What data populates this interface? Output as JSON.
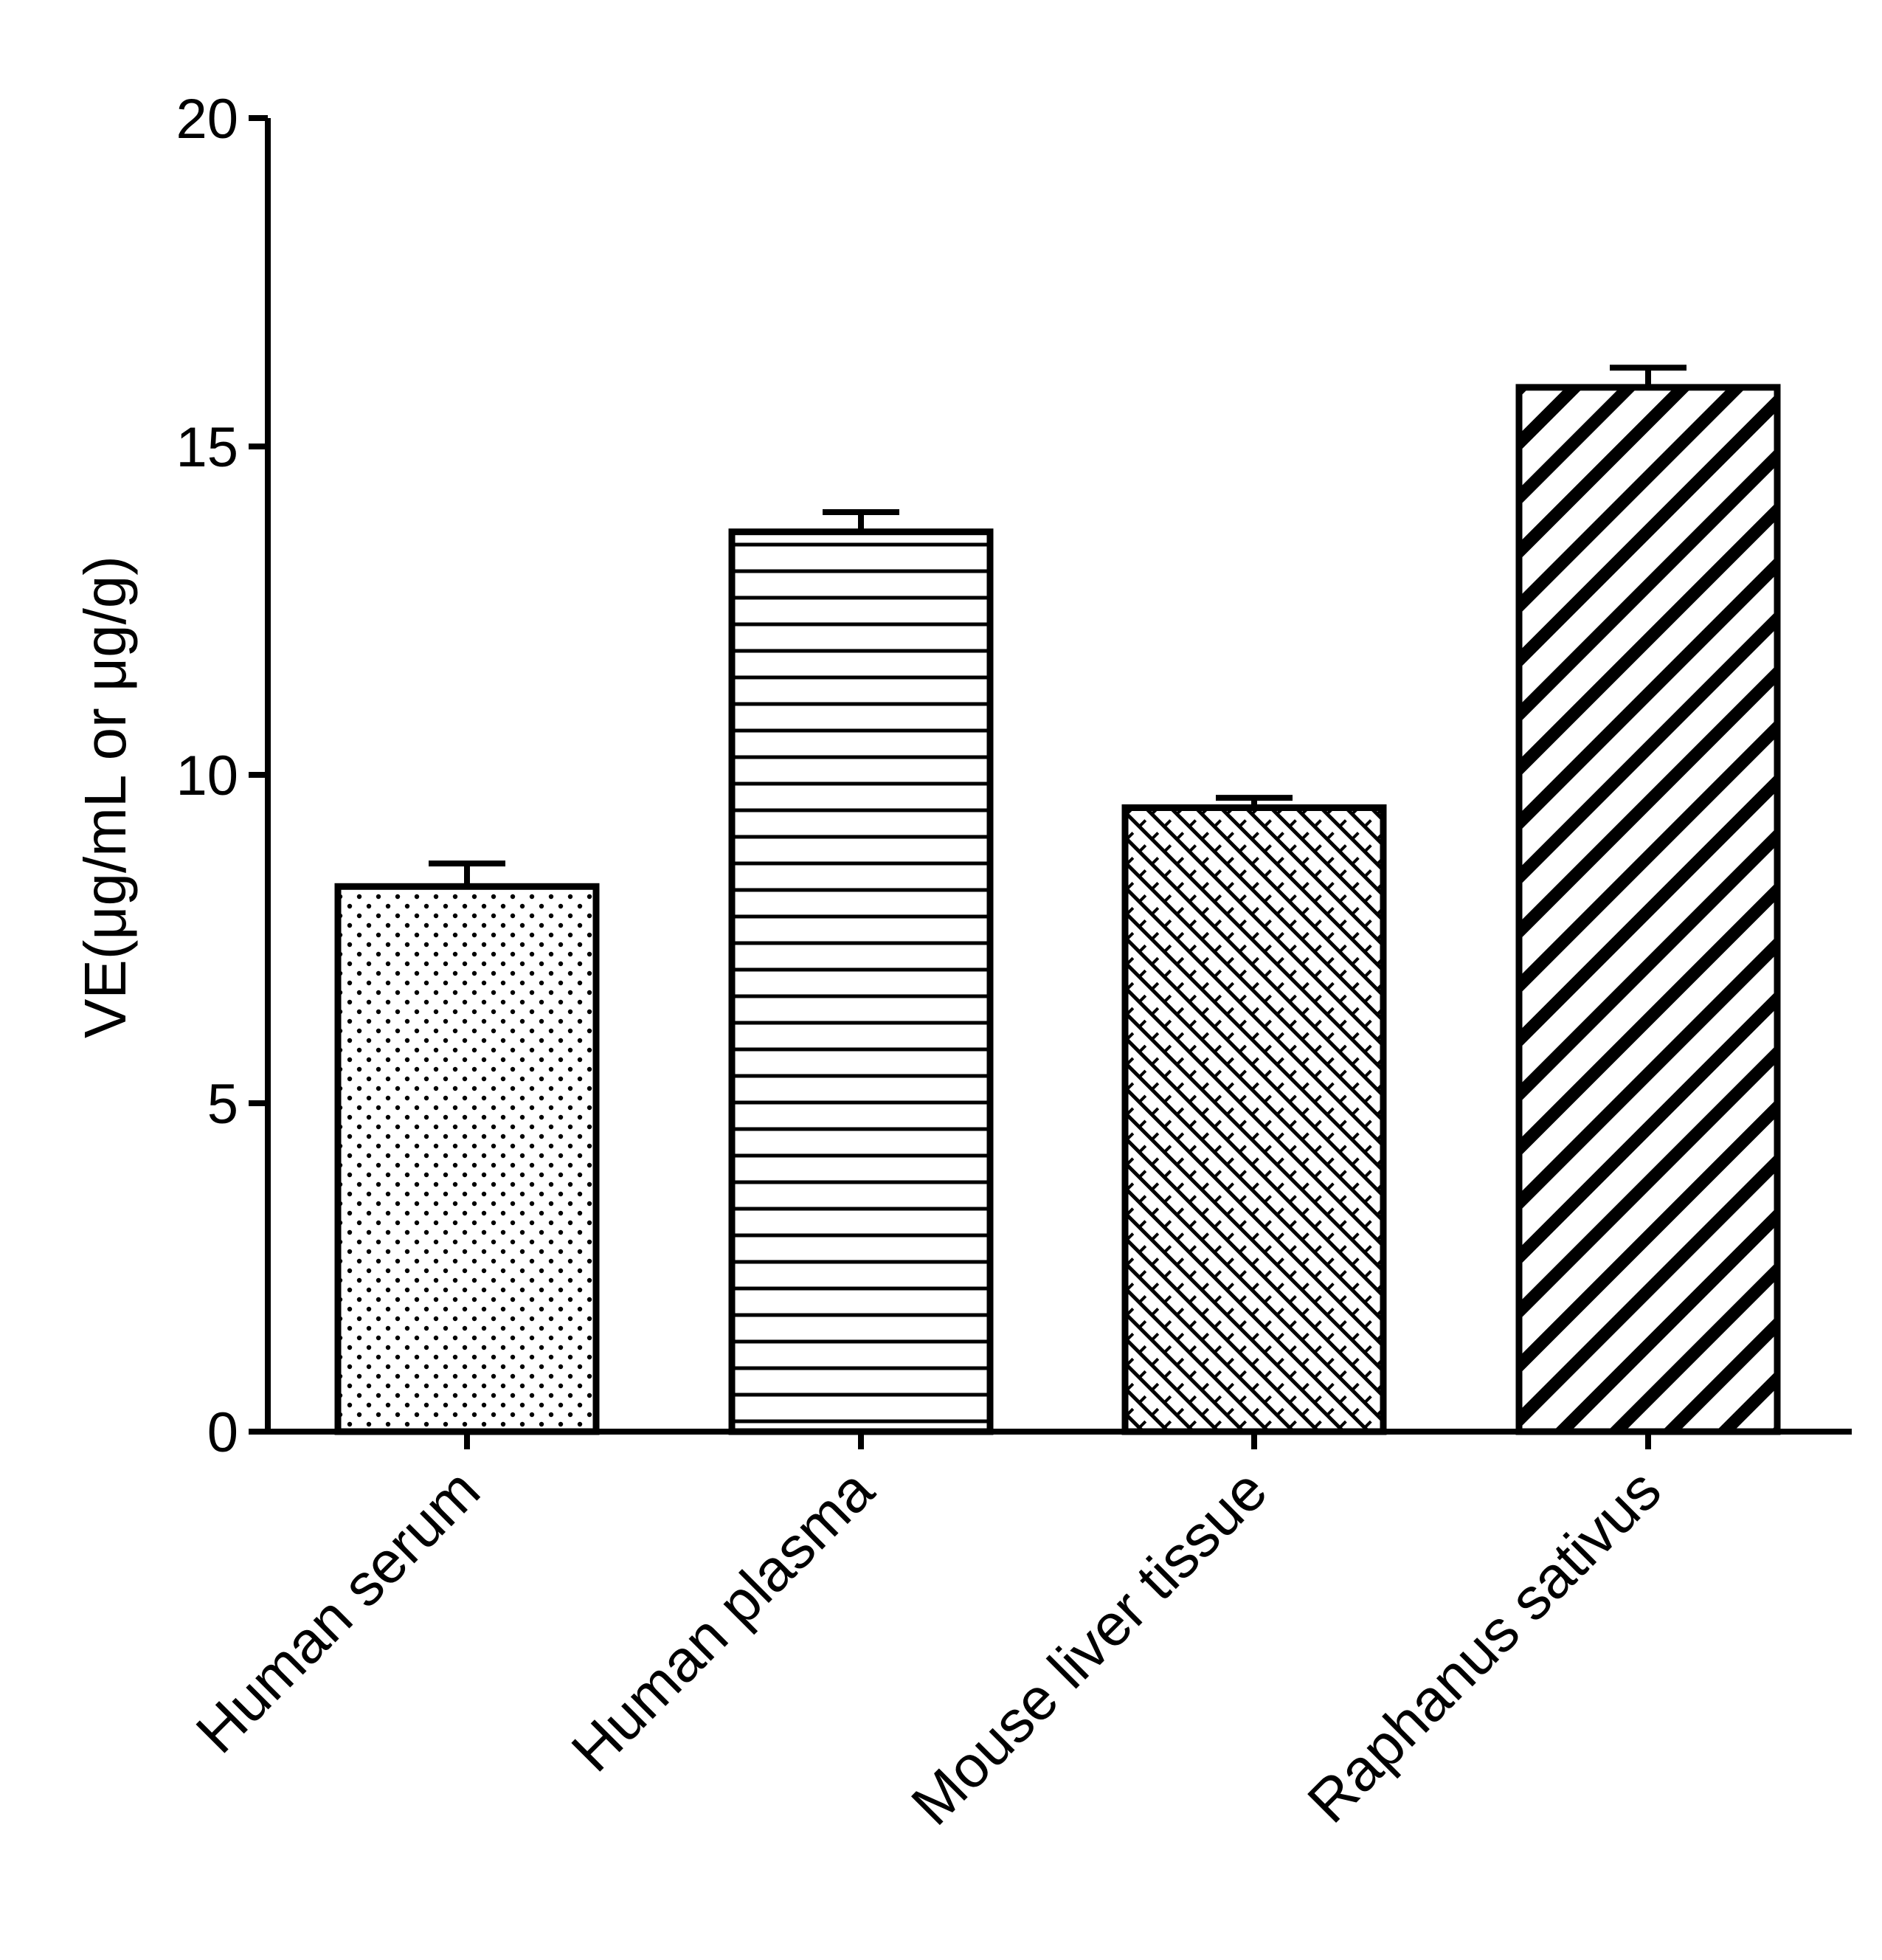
{
  "chart_data": {
    "type": "bar",
    "title": "",
    "xlabel": "",
    "ylabel": "VE(μg/mL or μg/g)",
    "ylim": [
      0,
      20
    ],
    "yticks": [
      0,
      5,
      10,
      15,
      20
    ],
    "tick_labels": [
      "0",
      "5",
      "10",
      "15",
      "20"
    ],
    "categories": [
      "Human serum",
      "Human plasma",
      "Mouse liver tissue",
      "Raphanus sativus"
    ],
    "values": [
      8.3,
      13.7,
      9.5,
      15.9
    ],
    "errors": [
      0.35,
      0.3,
      0.15,
      0.3
    ],
    "patterns": [
      "dots",
      "horizontal-lines",
      "crosshatch",
      "diagonal-stripes"
    ],
    "grid": false,
    "legend": "none"
  },
  "colors": {
    "stroke": "#000000",
    "background": "#ffffff"
  }
}
